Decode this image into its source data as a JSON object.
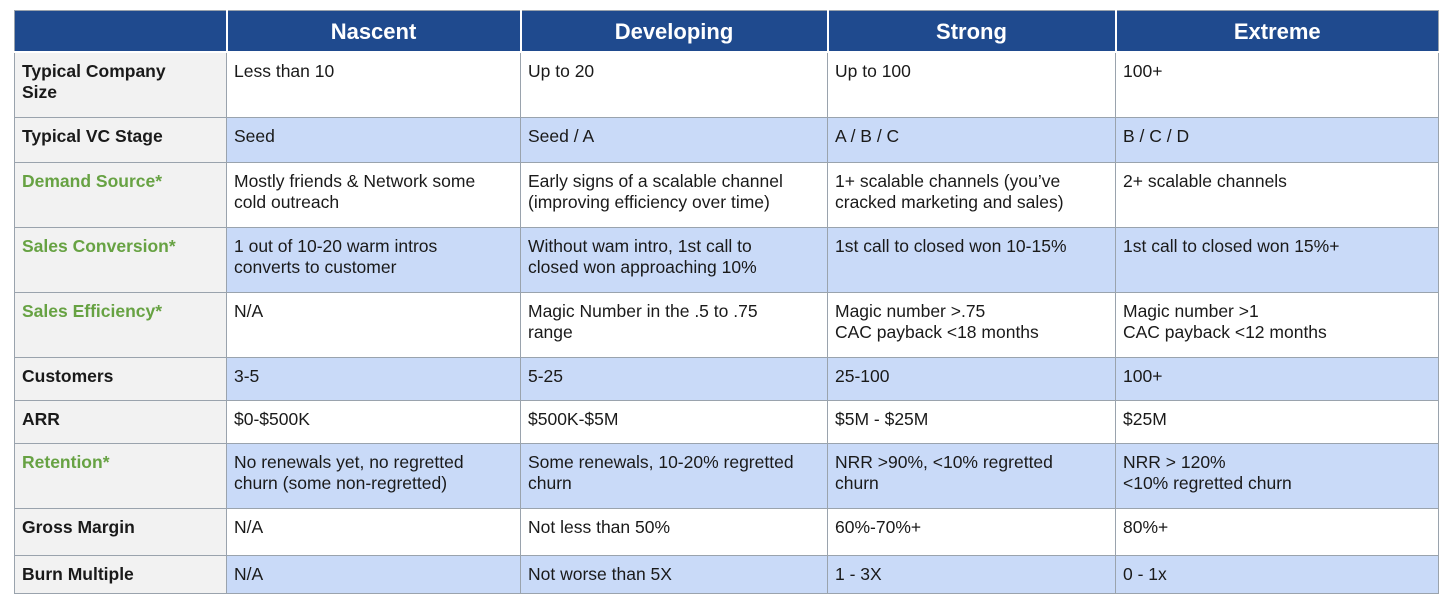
{
  "columns": [
    "",
    "Nascent",
    "Developing",
    "Strong",
    "Extreme"
  ],
  "rows": [
    {
      "label": "Typical Company Size",
      "label_lines": [
        "Typical Company",
        "Size"
      ],
      "highlight": false,
      "cells": [
        [
          "Less than 10"
        ],
        [
          "Up to 20"
        ],
        [
          "Up to 100"
        ],
        [
          "100+"
        ]
      ]
    },
    {
      "label": "Typical VC Stage",
      "label_lines": [
        "Typical VC Stage"
      ],
      "highlight": false,
      "cells": [
        [
          "Seed"
        ],
        [
          "Seed / A"
        ],
        [
          "A / B / C"
        ],
        [
          "B / C / D"
        ]
      ]
    },
    {
      "label": "Demand Source*",
      "label_lines": [
        "Demand Source*"
      ],
      "highlight": true,
      "cells": [
        [
          "Mostly friends & Network some",
          "cold outreach"
        ],
        [
          "Early signs of a scalable channel",
          "(improving efficiency over time)"
        ],
        [
          "1+ scalable channels (you’ve",
          "cracked  marketing and sales)"
        ],
        [
          "2+ scalable channels"
        ]
      ]
    },
    {
      "label": "Sales Conversion*",
      "label_lines": [
        "Sales Conversion*"
      ],
      "highlight": true,
      "cells": [
        [
          "1 out of 10-20 warm intros",
          "converts to customer"
        ],
        [
          "Without wam intro, 1st call to",
          "closed won approaching 10%"
        ],
        [
          "1st call to closed won 10-15%"
        ],
        [
          "1st call to closed won 15%+"
        ]
      ]
    },
    {
      "label": "Sales Efficiency*",
      "label_lines": [
        "Sales Efficiency*"
      ],
      "highlight": true,
      "cells": [
        [
          "N/A"
        ],
        [
          "Magic Number in the .5 to .75",
          "range"
        ],
        [
          "Magic number >.75",
          "CAC payback <18 months"
        ],
        [
          "Magic number >1",
          "CAC payback <12 months"
        ]
      ]
    },
    {
      "label": "Customers",
      "label_lines": [
        "Customers"
      ],
      "highlight": false,
      "cells": [
        [
          "3-5"
        ],
        [
          "5-25"
        ],
        [
          "25-100"
        ],
        [
          "100+"
        ]
      ]
    },
    {
      "label": "ARR",
      "label_lines": [
        "ARR"
      ],
      "highlight": false,
      "cells": [
        [
          "$0-$500K"
        ],
        [
          "$500K-$5M"
        ],
        [
          "$5M - $25M"
        ],
        [
          "$25M"
        ]
      ]
    },
    {
      "label": "Retention*",
      "label_lines": [
        "Retention*"
      ],
      "highlight": true,
      "cells": [
        [
          "No renewals yet, no regretted",
          "churn (some non-regretted)"
        ],
        [
          "Some renewals, 10-20% regretted",
          "churn"
        ],
        [
          "NRR >90%, <10% regretted",
          "churn"
        ],
        [
          "NRR > 120%",
          "<10% regretted churn"
        ]
      ]
    },
    {
      "label": "Gross Margin",
      "label_lines": [
        "Gross Margin"
      ],
      "highlight": false,
      "cells": [
        [
          "N/A"
        ],
        [
          "Not less than 50%"
        ],
        [
          "60%-70%+"
        ],
        [
          "80%+"
        ]
      ]
    },
    {
      "label": "Burn Multiple",
      "label_lines": [
        "Burn Multiple"
      ],
      "highlight": false,
      "cells": [
        [
          "N/A"
        ],
        [
          "Not worse than 5X"
        ],
        [
          "1 - 3X"
        ],
        [
          "0 - 1x"
        ]
      ]
    }
  ],
  "colors": {
    "header_bg": "#1f4a8e",
    "header_text": "#ffffff",
    "highlight_label": "#67a243",
    "band_blue": "#c9daf8",
    "label_bg": "#f2f2f2"
  }
}
